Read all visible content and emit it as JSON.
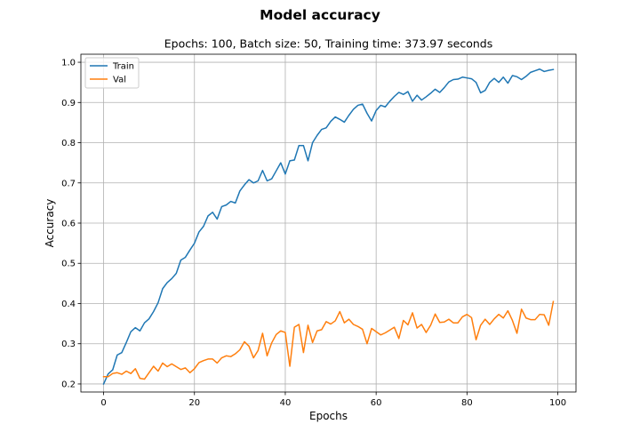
{
  "figure": {
    "suptitle": "Model accuracy"
  },
  "chart_data": {
    "type": "line",
    "title": "Epochs: 100, Batch size: 50, Training time: 373.97 seconds",
    "xlabel": "Epochs",
    "ylabel": "Accuracy",
    "xlim": [
      -5,
      104
    ],
    "ylim": [
      0.18,
      1.02
    ],
    "xticks": [
      "0",
      "20",
      "40",
      "60",
      "80",
      "100"
    ],
    "yticks": [
      "0.2",
      "0.3",
      "0.4",
      "0.5",
      "0.6",
      "0.7",
      "0.8",
      "0.9",
      "1.0"
    ],
    "grid": true,
    "legend_placement": "upper-left",
    "x": [
      0,
      1,
      2,
      3,
      4,
      5,
      6,
      7,
      8,
      9,
      10,
      11,
      12,
      13,
      14,
      15,
      16,
      17,
      18,
      19,
      20,
      21,
      22,
      23,
      24,
      25,
      26,
      27,
      28,
      29,
      30,
      31,
      32,
      33,
      34,
      35,
      36,
      37,
      38,
      39,
      40,
      41,
      42,
      43,
      44,
      45,
      46,
      47,
      48,
      49,
      50,
      51,
      52,
      53,
      54,
      55,
      56,
      57,
      58,
      59,
      60,
      61,
      62,
      63,
      64,
      65,
      66,
      67,
      68,
      69,
      70,
      71,
      72,
      73,
      74,
      75,
      76,
      77,
      78,
      79,
      80,
      81,
      82,
      83,
      84,
      85,
      86,
      87,
      88,
      89,
      90,
      91,
      92,
      93,
      94,
      95,
      96,
      97,
      98,
      99
    ],
    "series": [
      {
        "name": "Train",
        "color": "#1f77b4",
        "values": [
          0.2,
          0.225,
          0.235,
          0.272,
          0.278,
          0.303,
          0.33,
          0.34,
          0.332,
          0.352,
          0.362,
          0.38,
          0.402,
          0.437,
          0.452,
          0.462,
          0.475,
          0.508,
          0.515,
          0.533,
          0.55,
          0.578,
          0.592,
          0.618,
          0.627,
          0.61,
          0.641,
          0.645,
          0.654,
          0.65,
          0.68,
          0.695,
          0.708,
          0.7,
          0.705,
          0.731,
          0.705,
          0.71,
          0.73,
          0.75,
          0.722,
          0.755,
          0.757,
          0.793,
          0.793,
          0.755,
          0.8,
          0.818,
          0.833,
          0.837,
          0.853,
          0.864,
          0.858,
          0.851,
          0.868,
          0.883,
          0.893,
          0.896,
          0.873,
          0.854,
          0.88,
          0.893,
          0.889,
          0.903,
          0.915,
          0.925,
          0.92,
          0.927,
          0.903,
          0.918,
          0.906,
          0.914,
          0.923,
          0.933,
          0.925,
          0.937,
          0.951,
          0.957,
          0.958,
          0.963,
          0.961,
          0.959,
          0.95,
          0.924,
          0.93,
          0.95,
          0.96,
          0.95,
          0.963,
          0.948,
          0.967,
          0.964,
          0.957,
          0.965,
          0.975,
          0.979,
          0.983,
          0.977,
          0.98,
          0.982
        ]
      },
      {
        "name": "Val",
        "color": "#ff7f0e",
        "values": [
          0.218,
          0.218,
          0.226,
          0.228,
          0.224,
          0.232,
          0.226,
          0.238,
          0.214,
          0.212,
          0.228,
          0.244,
          0.232,
          0.252,
          0.243,
          0.25,
          0.243,
          0.236,
          0.24,
          0.228,
          0.238,
          0.253,
          0.258,
          0.262,
          0.262,
          0.252,
          0.265,
          0.27,
          0.268,
          0.275,
          0.285,
          0.305,
          0.294,
          0.265,
          0.283,
          0.326,
          0.27,
          0.302,
          0.323,
          0.332,
          0.328,
          0.244,
          0.341,
          0.348,
          0.278,
          0.346,
          0.303,
          0.332,
          0.335,
          0.355,
          0.349,
          0.357,
          0.38,
          0.352,
          0.361,
          0.348,
          0.343,
          0.336,
          0.3,
          0.338,
          0.33,
          0.322,
          0.327,
          0.334,
          0.341,
          0.313,
          0.358,
          0.347,
          0.377,
          0.339,
          0.348,
          0.328,
          0.346,
          0.374,
          0.353,
          0.354,
          0.361,
          0.352,
          0.352,
          0.367,
          0.373,
          0.365,
          0.31,
          0.346,
          0.361,
          0.348,
          0.362,
          0.373,
          0.364,
          0.382,
          0.358,
          0.326,
          0.386,
          0.364,
          0.36,
          0.36,
          0.373,
          0.372,
          0.346,
          0.405
        ]
      }
    ]
  }
}
